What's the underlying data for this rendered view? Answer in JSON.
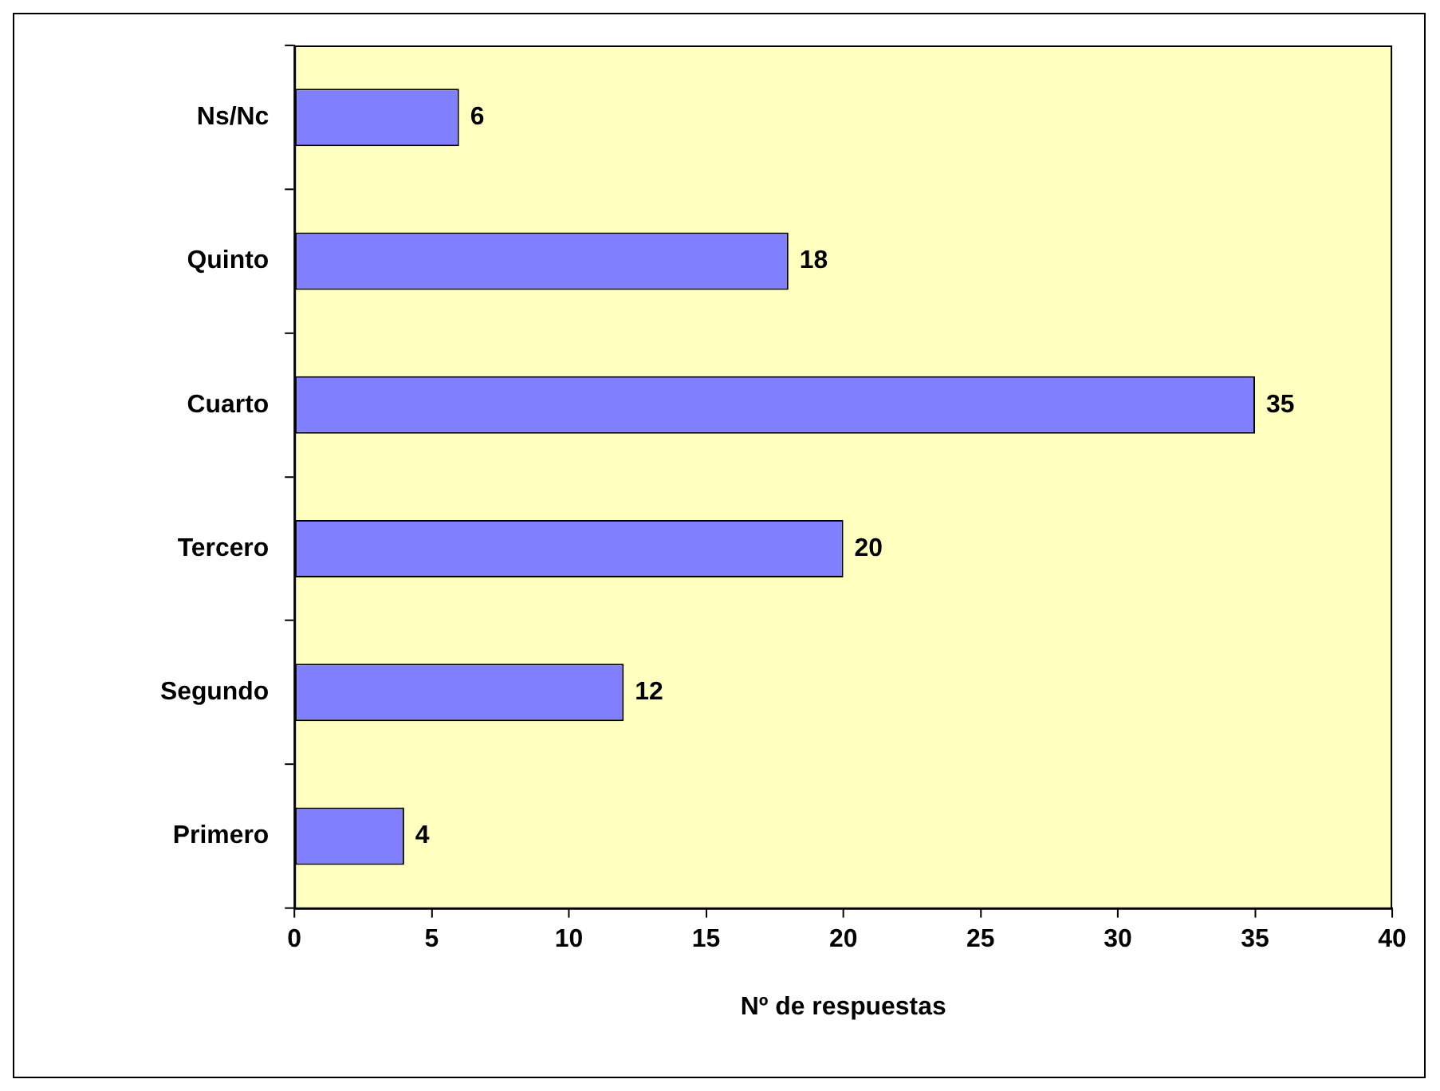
{
  "chart_data": {
    "type": "bar",
    "orientation": "horizontal",
    "categories": [
      "Ns/Nc",
      "Quinto",
      "Cuarto",
      "Tercero",
      "Segundo",
      "Primero"
    ],
    "values": [
      6,
      18,
      35,
      20,
      12,
      4
    ],
    "color": "#8080ff",
    "xlabel": "Nº de respuestas",
    "xlim": [
      0,
      40
    ],
    "xticks": [
      0,
      5,
      10,
      15,
      20,
      25,
      30,
      35,
      40
    ],
    "data_labels": true,
    "grid": false,
    "legend": false
  }
}
